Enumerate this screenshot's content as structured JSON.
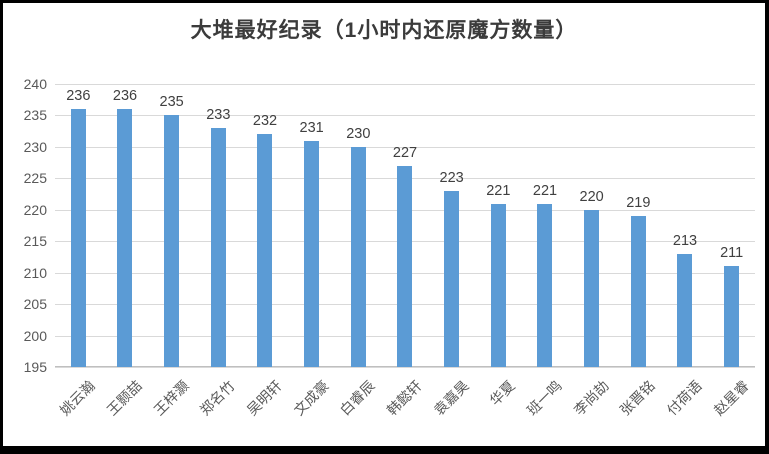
{
  "chart_data": {
    "type": "bar",
    "title": "大堆最好纪录（1小时内还原魔方数量）",
    "categories": [
      "姚云瀚",
      "王颢喆",
      "王梓灏",
      "郑名竹",
      "吴明轩",
      "文成豪",
      "白睿辰",
      "韩懿轩",
      "袁嘉昊",
      "华夏",
      "班一鸣",
      "李尚劼",
      "张晋铭",
      "付荷语",
      "赵星睿"
    ],
    "values": [
      236,
      236,
      235,
      233,
      232,
      231,
      230,
      227,
      223,
      221,
      221,
      220,
      219,
      213,
      211
    ],
    "xlabel": "",
    "ylabel": "",
    "ylim": [
      195,
      240
    ],
    "yticks": [
      240,
      235,
      230,
      225,
      220,
      215,
      210,
      205,
      200,
      195
    ],
    "grid": true,
    "legend_position": "none",
    "data_labels": true,
    "colors": {
      "bar": "#5b9bd5",
      "gridline": "#d9d9d9",
      "axis_line": "#bfbfbf",
      "tick_label": "#595959",
      "data_label": "#404040",
      "title": "#3b3b3b",
      "frame_border": "#000000",
      "background": "#ffffff"
    }
  }
}
